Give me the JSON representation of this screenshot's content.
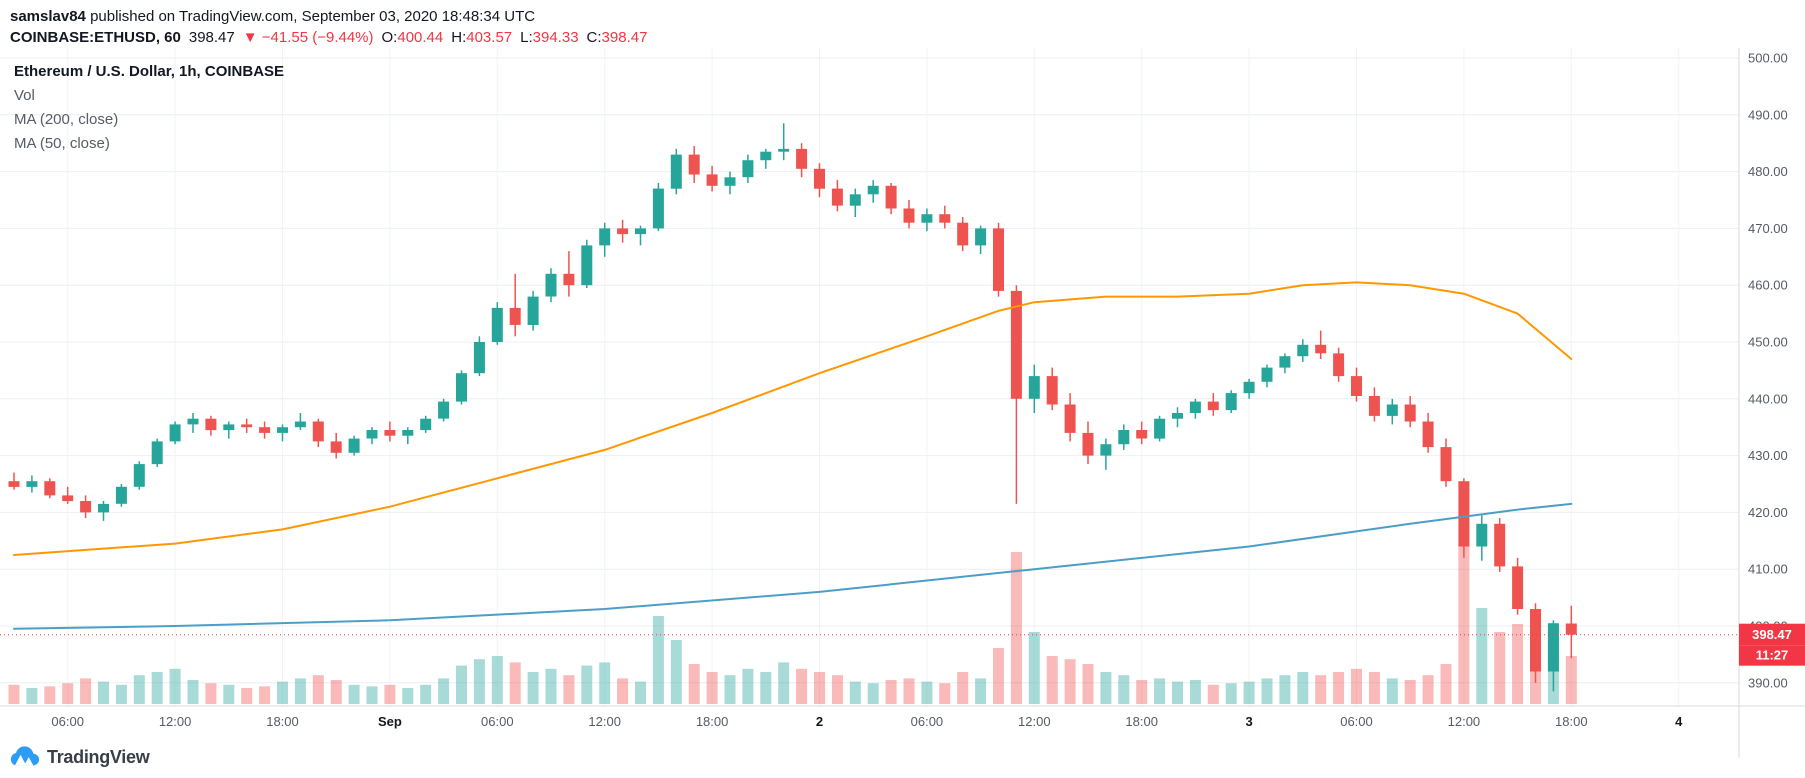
{
  "header": {
    "line1_bold": "samslav84",
    "line1_rest": " published on TradingView.com, September 03, 2020 18:48:34 UTC",
    "symbol": "COINBASE:ETHUSD, 60",
    "last_price": "398.47",
    "change": "▼ −41.55 (−9.44%)",
    "ohlc": [
      {
        "label": "O:",
        "value": "400.44"
      },
      {
        "label": "H:",
        "value": "403.57"
      },
      {
        "label": "L:",
        "value": "394.33"
      },
      {
        "label": "C:",
        "value": "398.47"
      }
    ]
  },
  "legend": {
    "title": "Ethereum / U.S. Dollar, 1h, COINBASE",
    "vol": "Vol",
    "ma200": "MA (200, close)",
    "ma50": "MA (50, close)"
  },
  "footer": {
    "logo_text": "TradingView"
  },
  "chart_data": {
    "type": "candlestick",
    "title": "Ethereum / U.S. Dollar, 1h, COINBASE",
    "symbol": "COINBASE:ETHUSD",
    "exchange": "COINBASE",
    "interval": "60",
    "start_time": "Aug 31 2020 03:00 UTC",
    "interval_minutes": 60,
    "ylim": [
      388,
      502
    ],
    "grid": true,
    "price_ticks": [
      "500.00",
      "490.00",
      "480.00",
      "470.00",
      "460.00",
      "450.00",
      "440.00",
      "430.00",
      "420.00",
      "410.00",
      "400.00",
      "390.00"
    ],
    "time_ticks": [
      {
        "index": 3,
        "label": "06:00",
        "major": false
      },
      {
        "index": 9,
        "label": "12:00",
        "major": false
      },
      {
        "index": 15,
        "label": "18:00",
        "major": false
      },
      {
        "index": 21,
        "label": "Sep",
        "major": true
      },
      {
        "index": 27,
        "label": "06:00",
        "major": false
      },
      {
        "index": 33,
        "label": "12:00",
        "major": false
      },
      {
        "index": 39,
        "label": "18:00",
        "major": false
      },
      {
        "index": 45,
        "label": "2",
        "major": true
      },
      {
        "index": 51,
        "label": "06:00",
        "major": false
      },
      {
        "index": 57,
        "label": "12:00",
        "major": false
      },
      {
        "index": 63,
        "label": "18:00",
        "major": false
      },
      {
        "index": 69,
        "label": "3",
        "major": true
      },
      {
        "index": 75,
        "label": "06:00",
        "major": false
      },
      {
        "index": 81,
        "label": "12:00",
        "major": false
      },
      {
        "index": 87,
        "label": "18:00",
        "major": false
      },
      {
        "index": 93,
        "label": "4",
        "major": true
      }
    ],
    "candles": [
      [
        425.5,
        427,
        424,
        424.5,
        12
      ],
      [
        424.5,
        426.5,
        423.5,
        425.5,
        10
      ],
      [
        425.5,
        426,
        422.5,
        423,
        11
      ],
      [
        423,
        424.5,
        421.5,
        422,
        13
      ],
      [
        422,
        423,
        419,
        420,
        16
      ],
      [
        420,
        422,
        418.5,
        421.5,
        14
      ],
      [
        421.5,
        425,
        421,
        424.5,
        12
      ],
      [
        424.5,
        429,
        424,
        428.5,
        18
      ],
      [
        428.5,
        433,
        428,
        432.5,
        20
      ],
      [
        432.5,
        436,
        432,
        435.5,
        22
      ],
      [
        435.5,
        437.5,
        434,
        436.5,
        15
      ],
      [
        436.5,
        437,
        433.5,
        434.5,
        13
      ],
      [
        434.5,
        436,
        433,
        435.5,
        12
      ],
      [
        435.5,
        436.5,
        434,
        435,
        10
      ],
      [
        435,
        436,
        433,
        434,
        11
      ],
      [
        434,
        435.5,
        432.5,
        435,
        14
      ],
      [
        435,
        437.5,
        434.5,
        436,
        16
      ],
      [
        436,
        436.5,
        431.5,
        432.5,
        18
      ],
      [
        432.5,
        434,
        429.5,
        430.5,
        15
      ],
      [
        430.5,
        433.5,
        430,
        433,
        12
      ],
      [
        433,
        435,
        432,
        434.5,
        11
      ],
      [
        434.5,
        436,
        432.5,
        433.5,
        12
      ],
      [
        433.5,
        435,
        432,
        434.5,
        10
      ],
      [
        434.5,
        437,
        434,
        436.5,
        12
      ],
      [
        436.5,
        440,
        436,
        439.5,
        16
      ],
      [
        439.5,
        445,
        439,
        444.5,
        24
      ],
      [
        444.5,
        451,
        444,
        450,
        28
      ],
      [
        450,
        457,
        449.5,
        456,
        30
      ],
      [
        456,
        462,
        451,
        453,
        26
      ],
      [
        453,
        459,
        452,
        458,
        20
      ],
      [
        458,
        463,
        457,
        462,
        22
      ],
      [
        462,
        466,
        458,
        460,
        18
      ],
      [
        460,
        468,
        459.5,
        467,
        24
      ],
      [
        467,
        471,
        465,
        470,
        26
      ],
      [
        470,
        471.5,
        467.5,
        469,
        16
      ],
      [
        469,
        470.5,
        467,
        470,
        14
      ],
      [
        470,
        478,
        469.5,
        477,
        55
      ],
      [
        477,
        484,
        476,
        483,
        40
      ],
      [
        483,
        484.5,
        478,
        479.5,
        25
      ],
      [
        479.5,
        481,
        476.5,
        477.5,
        20
      ],
      [
        477.5,
        480,
        476,
        479,
        18
      ],
      [
        479,
        483,
        478,
        482,
        22
      ],
      [
        482,
        484,
        480.5,
        483.5,
        20
      ],
      [
        483.5,
        488.5,
        482,
        484,
        26
      ],
      [
        484,
        485,
        479,
        480.5,
        22
      ],
      [
        480.5,
        481.5,
        475.5,
        477,
        20
      ],
      [
        477,
        478.5,
        473,
        474,
        18
      ],
      [
        474,
        477,
        472,
        476,
        14
      ],
      [
        476,
        478.5,
        474.5,
        477.5,
        13
      ],
      [
        477.5,
        478,
        472.5,
        473.5,
        15
      ],
      [
        473.5,
        475,
        470,
        471,
        16
      ],
      [
        471,
        473.5,
        469.5,
        472.5,
        14
      ],
      [
        472.5,
        474,
        470,
        471,
        13
      ],
      [
        471,
        472,
        466,
        467,
        20
      ],
      [
        467,
        470.5,
        465.5,
        470,
        16
      ],
      [
        470,
        471,
        458,
        459,
        35
      ],
      [
        459,
        460,
        421.5,
        440,
        95
      ],
      [
        440,
        446,
        437.5,
        444,
        45
      ],
      [
        444,
        445.5,
        438,
        439,
        30
      ],
      [
        439,
        441,
        432.5,
        434,
        28
      ],
      [
        434,
        436,
        428.5,
        430,
        25
      ],
      [
        430,
        433,
        427.5,
        432,
        20
      ],
      [
        432,
        435.5,
        431,
        434.5,
        18
      ],
      [
        434.5,
        436,
        432,
        433,
        15
      ],
      [
        433,
        437,
        432.5,
        436.5,
        16
      ],
      [
        436.5,
        438.5,
        435,
        437.5,
        14
      ],
      [
        437.5,
        440,
        436.5,
        439.5,
        15
      ],
      [
        439.5,
        441,
        437,
        438,
        12
      ],
      [
        438,
        441.5,
        437.5,
        441,
        13
      ],
      [
        441,
        443.5,
        440,
        443,
        14
      ],
      [
        443,
        446,
        442,
        445.5,
        16
      ],
      [
        445.5,
        448,
        444.5,
        447.5,
        18
      ],
      [
        447.5,
        450.5,
        446.5,
        449.5,
        20
      ],
      [
        449.5,
        452,
        447,
        448,
        18
      ],
      [
        448,
        449,
        443,
        444,
        20
      ],
      [
        444,
        445.5,
        439.5,
        440.5,
        22
      ],
      [
        440.5,
        442,
        436,
        437,
        20
      ],
      [
        437,
        440,
        435.5,
        439,
        16
      ],
      [
        439,
        440.5,
        435,
        436,
        15
      ],
      [
        436,
        437.5,
        430.5,
        431.5,
        18
      ],
      [
        431.5,
        433,
        424.5,
        425.5,
        25
      ],
      [
        425.5,
        426,
        412,
        414,
        100
      ],
      [
        414,
        419.5,
        411.5,
        418,
        60
      ],
      [
        418,
        419,
        409.5,
        410.5,
        45
      ],
      [
        410.5,
        412,
        402,
        403,
        50
      ],
      [
        403,
        404,
        390,
        392,
        55
      ],
      [
        392,
        401,
        388.5,
        400.5,
        48
      ],
      [
        400.44,
        403.57,
        394.33,
        398.47,
        30
      ]
    ],
    "ma50_points": [
      [
        0,
        412.5
      ],
      [
        9,
        414.5
      ],
      [
        15,
        417
      ],
      [
        21,
        421
      ],
      [
        27,
        426
      ],
      [
        33,
        431
      ],
      [
        39,
        437.5
      ],
      [
        45,
        444.5
      ],
      [
        51,
        451
      ],
      [
        55,
        455.5
      ],
      [
        57,
        457
      ],
      [
        61,
        458
      ],
      [
        65,
        458
      ],
      [
        69,
        458.5
      ],
      [
        72,
        460
      ],
      [
        75,
        460.5
      ],
      [
        78,
        460
      ],
      [
        81,
        458.5
      ],
      [
        84,
        455
      ],
      [
        87,
        447
      ]
    ],
    "ma200_points": [
      [
        0,
        399.5
      ],
      [
        9,
        400
      ],
      [
        21,
        401
      ],
      [
        33,
        403
      ],
      [
        45,
        406
      ],
      [
        57,
        410
      ],
      [
        69,
        414
      ],
      [
        78,
        418
      ],
      [
        84,
        420.5
      ],
      [
        87,
        421.5
      ]
    ],
    "last_price": 398.47,
    "price_badge": "398.47",
    "countdown_badge": "11:27",
    "legend_position": "top-left",
    "colors": {
      "up": "#26a69a",
      "down": "#ef5350",
      "vol_up": "rgba(38,166,154,0.40)",
      "vol_down": "rgba(239,83,80,0.40)",
      "ma50": "#ff9800",
      "ma200": "#4c9ec7",
      "badge": "#f23645",
      "grid": "#eceff4",
      "grid_v": "#f1f3f8",
      "axis_border": "#d7dade",
      "axis_text": "#555b66",
      "text_primary": "#131722",
      "text_secondary": "#565b66"
    }
  }
}
